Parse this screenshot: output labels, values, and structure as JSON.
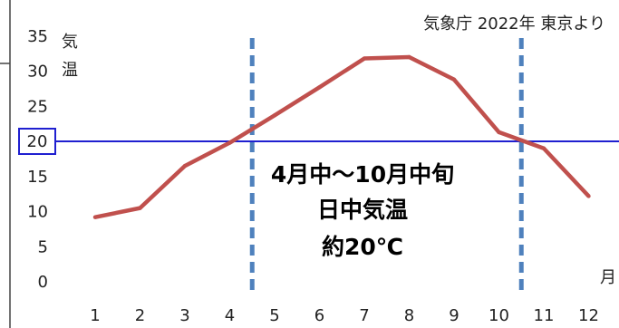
{
  "chart_data": {
    "type": "line",
    "source_note": "気象庁 2022年 東京より",
    "ylabel": "気温",
    "xunit": "月",
    "x": [
      1,
      2,
      3,
      4,
      5,
      6,
      7,
      8,
      9,
      10,
      11,
      12
    ],
    "y_ticks": [
      0,
      5,
      10,
      15,
      20,
      25,
      30,
      35
    ],
    "ylim": [
      0,
      35
    ],
    "series": [
      {
        "values": [
          9.2,
          10.5,
          16.5,
          19.8,
          23.7,
          27.7,
          31.8,
          32.0,
          28.8,
          21.3,
          19.0,
          12.2
        ],
        "color": "#c0504d"
      }
    ],
    "reference_line": {
      "y": 20,
      "label": "20",
      "color": "#1f1fd0"
    },
    "vertical_markers": [
      {
        "x": 4.5
      },
      {
        "x": 10.5
      }
    ],
    "marker_color": "#4f81bd",
    "annotation": [
      "4月中～10月中旬",
      "日中気温",
      "約20℃"
    ],
    "grid": false
  }
}
